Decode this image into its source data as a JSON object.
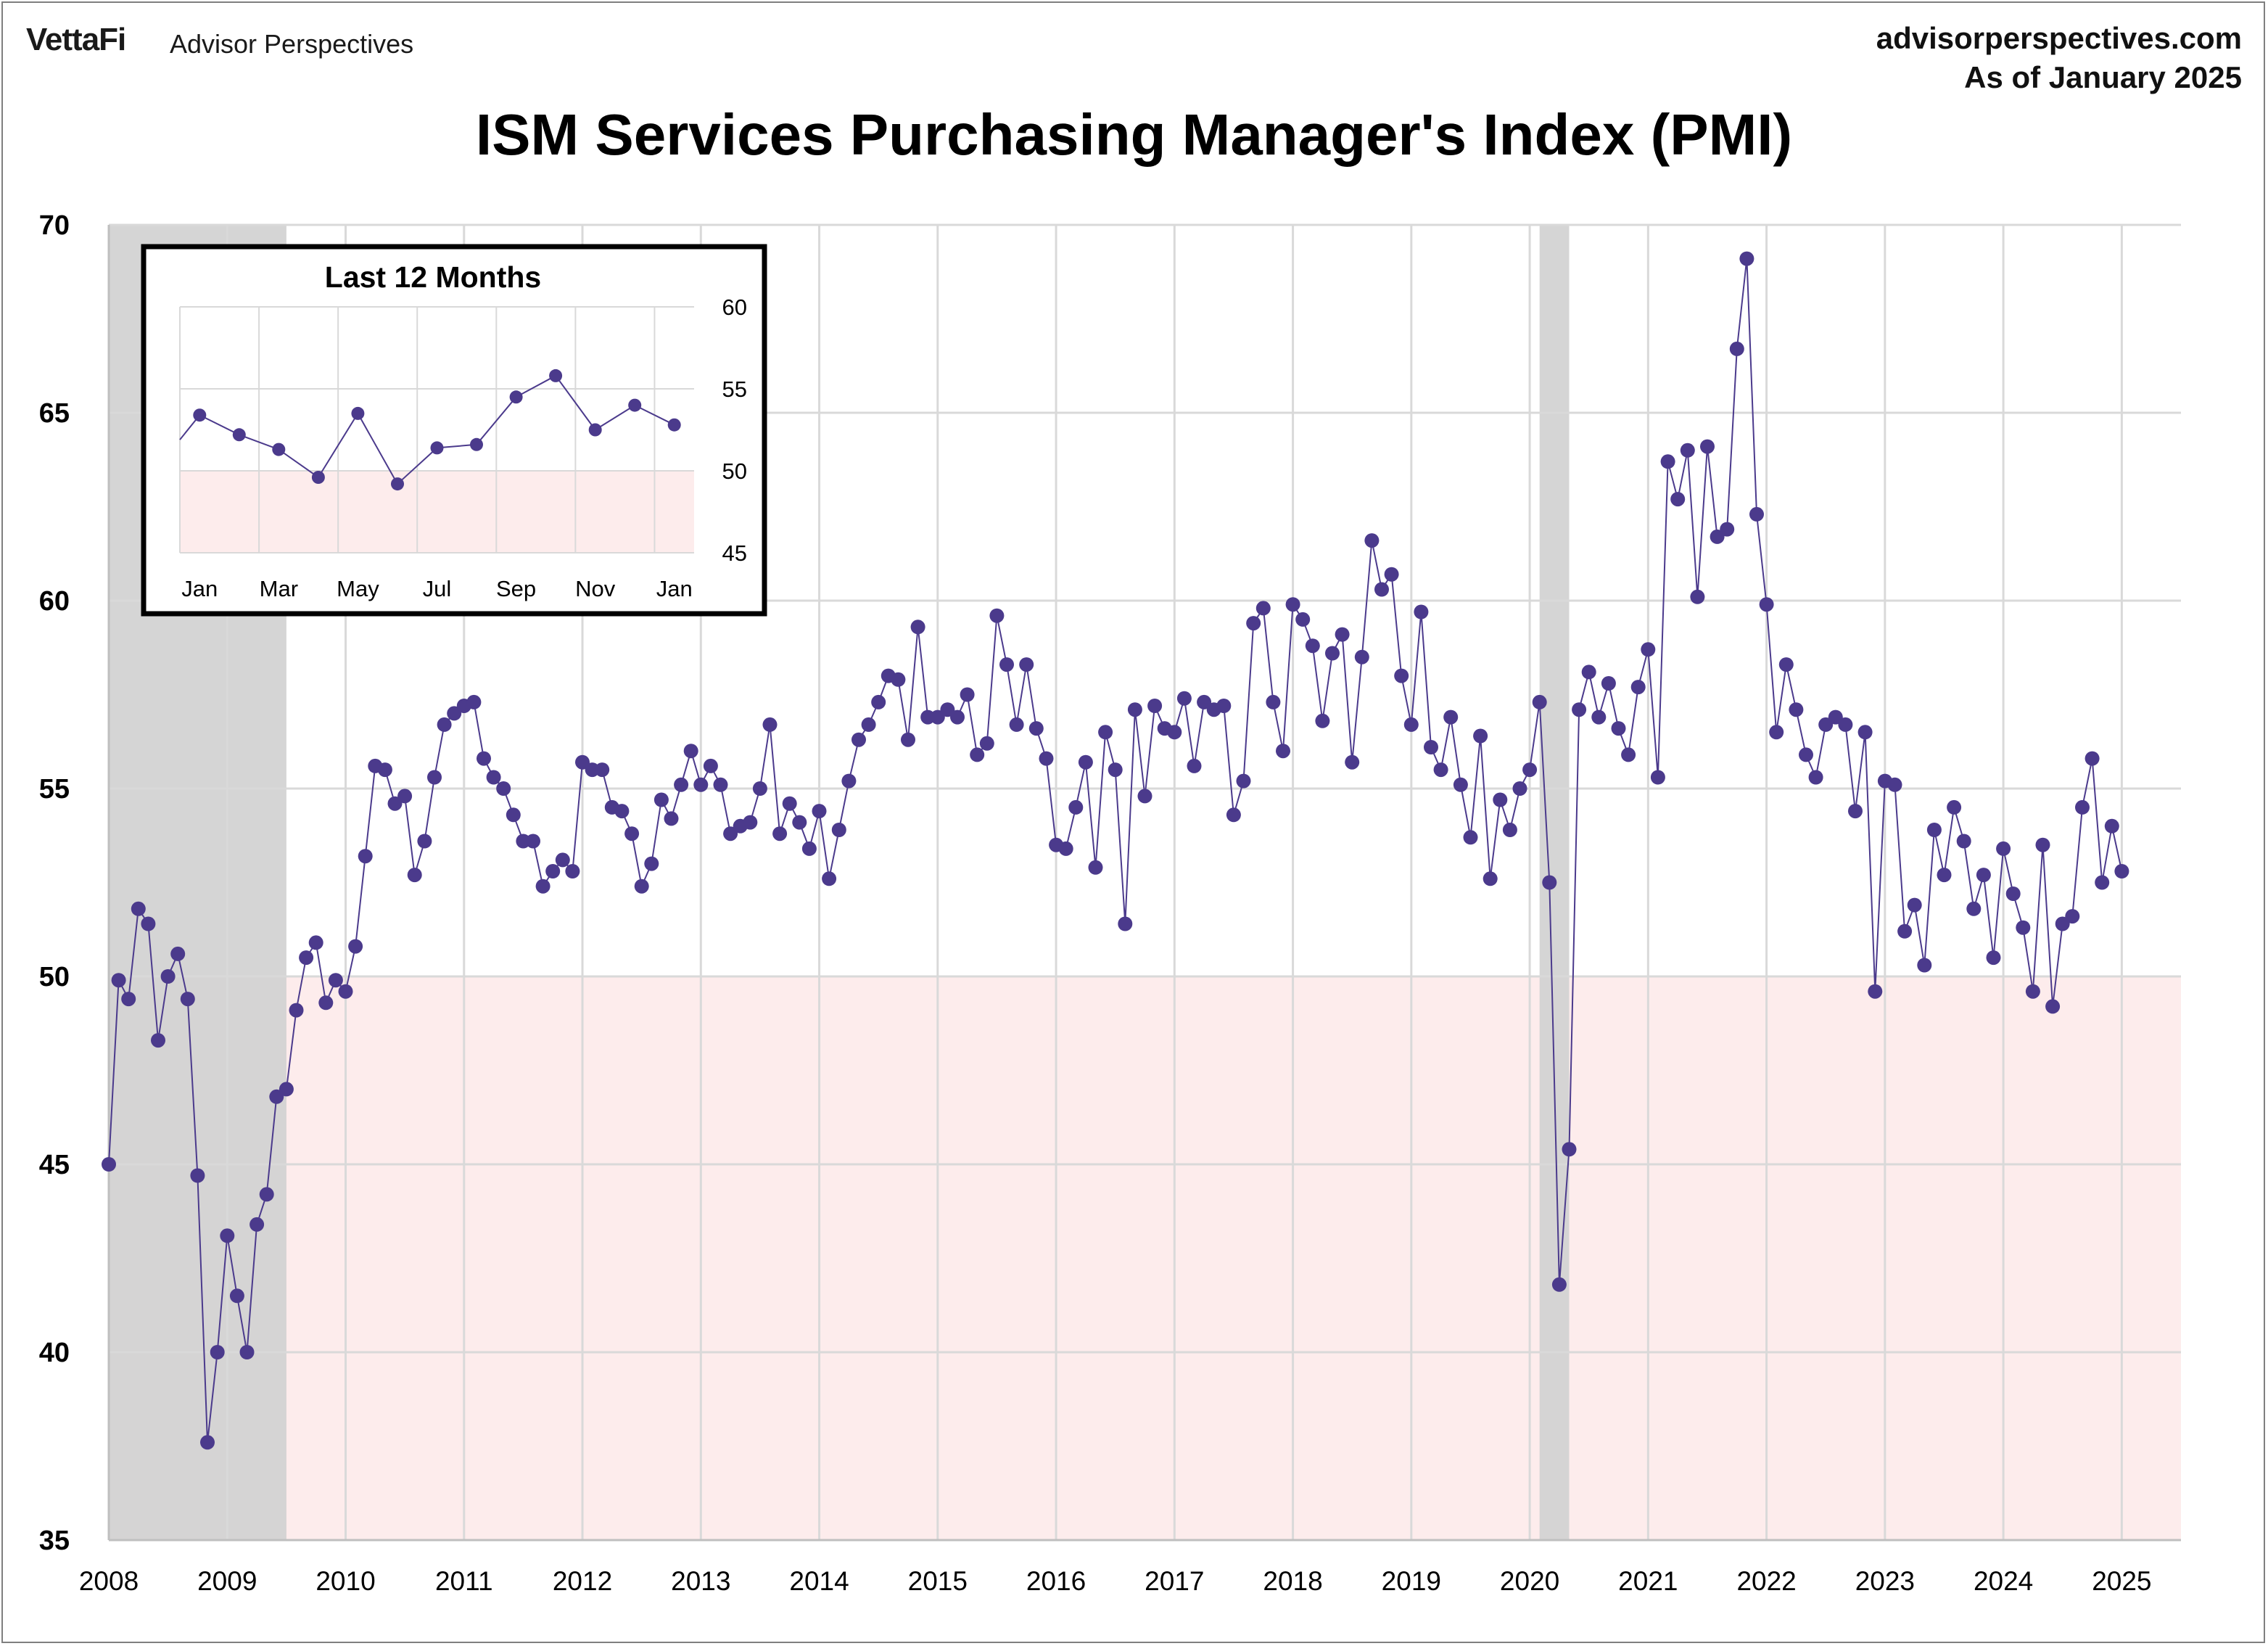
{
  "header": {
    "brand": "VettaFi",
    "brand_sub": "Advisor Perspectives",
    "site": "advisorperspectives.com",
    "as_of": "As of January 2025"
  },
  "colors": {
    "series": "#4b3a8c",
    "recession": "#d3d3d3",
    "contraction": "#fdecec",
    "grid": "#d9d9d9"
  },
  "chart_data": [
    {
      "type": "line",
      "title": "ISM Services Purchasing Manager's Index (PMI)",
      "xlabel": "",
      "ylabel": "",
      "ylim": [
        35,
        70
      ],
      "yticks": [
        35,
        40,
        45,
        50,
        55,
        60,
        65,
        70
      ],
      "xlim": [
        2008.0,
        2025.5
      ],
      "xticks": [
        "2008",
        "2009",
        "2010",
        "2011",
        "2012",
        "2013",
        "2014",
        "2015",
        "2016",
        "2017",
        "2018",
        "2019",
        "2020",
        "2021",
        "2022",
        "2023",
        "2024",
        "2025"
      ],
      "grid": true,
      "contraction_threshold": 50,
      "recessions": [
        {
          "start": "2008-01",
          "end": "2009-06"
        },
        {
          "start": "2020-02",
          "end": "2020-04"
        }
      ],
      "series": [
        {
          "start": "2008-01",
          "frequency": "monthly",
          "values": [
            45.0,
            49.9,
            49.4,
            51.8,
            51.4,
            48.3,
            50.0,
            50.6,
            49.4,
            44.7,
            37.6,
            40.0,
            43.1,
            41.5,
            40.0,
            43.4,
            44.2,
            46.8,
            47.0,
            49.1,
            50.5,
            50.9,
            49.3,
            49.9,
            49.6,
            50.8,
            53.2,
            55.6,
            55.5,
            54.6,
            54.8,
            52.7,
            53.6,
            55.3,
            56.7,
            57.0,
            57.2,
            57.3,
            55.8,
            55.3,
            55.0,
            54.3,
            53.6,
            53.6,
            52.4,
            52.8,
            53.1,
            52.8,
            55.7,
            55.5,
            55.5,
            54.5,
            54.4,
            53.8,
            52.4,
            53.0,
            54.7,
            54.2,
            55.1,
            56.0,
            55.1,
            55.6,
            55.1,
            53.8,
            54.0,
            54.1,
            55.0,
            56.7,
            53.8,
            54.6,
            54.1,
            53.4,
            54.4,
            52.6,
            53.9,
            55.2,
            56.3,
            56.7,
            57.3,
            58.0,
            57.9,
            56.3,
            59.3,
            56.9,
            56.9,
            57.1,
            56.9,
            57.5,
            55.9,
            56.2,
            59.6,
            58.3,
            56.7,
            58.3,
            56.6,
            55.8,
            53.5,
            53.4,
            54.5,
            55.7,
            52.9,
            56.5,
            55.5,
            51.4,
            57.1,
            54.8,
            57.2,
            56.6,
            56.5,
            57.4,
            55.6,
            57.3,
            57.1,
            57.2,
            54.3,
            55.2,
            59.4,
            59.8,
            57.3,
            56.0,
            59.9,
            59.5,
            58.8,
            56.8,
            58.6,
            59.1,
            55.7,
            58.5,
            61.6,
            60.3,
            60.7,
            58.0,
            56.7,
            59.7,
            56.1,
            55.5,
            56.9,
            55.1,
            53.7,
            56.4,
            52.6,
            54.7,
            53.9,
            55.0,
            55.5,
            57.3,
            52.5,
            41.8,
            45.4,
            57.1,
            58.1,
            56.9,
            57.8,
            56.6,
            55.9,
            57.7,
            58.7,
            55.3,
            63.7,
            62.7,
            64.0,
            60.1,
            64.1,
            61.7,
            61.9,
            66.7,
            69.1,
            62.3,
            59.9,
            56.5,
            58.3,
            57.1,
            55.9,
            55.3,
            56.7,
            56.9,
            56.7,
            54.4,
            56.5,
            49.6,
            55.2,
            55.1,
            51.2,
            51.9,
            50.3,
            53.9,
            52.7,
            54.5,
            53.6,
            51.8,
            52.7,
            50.5,
            53.4,
            52.2,
            51.3,
            49.6,
            53.5,
            49.2,
            51.4,
            51.6,
            54.5,
            55.8,
            52.5,
            54.0,
            52.8
          ]
        }
      ]
    },
    {
      "type": "line",
      "title": "Last 12 Months",
      "xlabel": "",
      "ylabel": "",
      "ylim": [
        45,
        60
      ],
      "yticks": [
        45,
        50,
        55,
        60
      ],
      "categories": [
        "Jan",
        "Feb",
        "Mar",
        "Apr",
        "May",
        "Jun",
        "Jul",
        "Aug",
        "Sep",
        "Oct",
        "Nov",
        "Dec",
        "Jan"
      ],
      "xtick_labels": [
        "Jan",
        "Mar",
        "May",
        "Jul",
        "Sep",
        "Nov",
        "Jan"
      ],
      "contraction_threshold": 50,
      "grid": true,
      "series": [
        {
          "values": [
            53.4,
            52.2,
            51.3,
            49.6,
            53.5,
            49.2,
            51.4,
            51.6,
            54.5,
            55.8,
            52.5,
            54.0,
            52.8
          ]
        }
      ]
    }
  ]
}
